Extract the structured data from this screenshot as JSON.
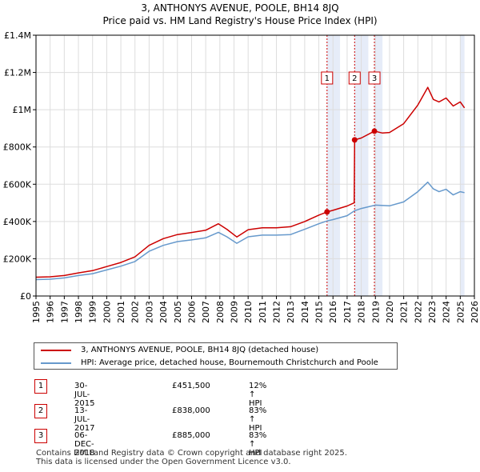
{
  "title_line1": "3, ANTHONYS AVENUE, POOLE, BH14 8JQ",
  "title_line2": "Price paid vs. HM Land Registry's House Price Index (HPI)",
  "colors": {
    "property": "#cc0000",
    "hpi": "#6699cc",
    "shade": "#e6ecf8",
    "grid": "#dddddd",
    "marker_border": "#cc0000"
  },
  "legend": {
    "property_label": "3, ANTHONYS AVENUE, POOLE, BH14 8JQ (detached house)",
    "hpi_label": "HPI: Average price, detached house, Bournemouth Christchurch and Poole"
  },
  "transactions": [
    {
      "num": "1",
      "date": "30-JUL-2015",
      "price": "£451,500",
      "hpi": "12% ↑ HPI"
    },
    {
      "num": "2",
      "date": "13-JUL-2017",
      "price": "£838,000",
      "hpi": "83% ↑ HPI"
    },
    {
      "num": "3",
      "date": "06-DEC-2018",
      "price": "£885,000",
      "hpi": "83% ↑ HPI"
    }
  ],
  "footer_line1": "Contains HM Land Registry data © Crown copyright and database right 2025.",
  "footer_line2": "This data is licensed under the Open Government Licence v3.0.",
  "chart_data": {
    "type": "line",
    "title": "3, ANTHONYS AVENUE, POOLE, BH14 8JQ",
    "subtitle": "Price paid vs. HM Land Registry's House Price Index (HPI)",
    "xlim": [
      1995,
      2026
    ],
    "ylim": [
      0,
      1400000
    ],
    "x_ticks": [
      "1995",
      "1996",
      "1997",
      "1998",
      "1999",
      "2000",
      "2001",
      "2002",
      "2003",
      "2004",
      "2005",
      "2006",
      "2007",
      "2008",
      "2009",
      "2010",
      "2011",
      "2012",
      "2013",
      "2014",
      "2015",
      "2016",
      "2017",
      "2018",
      "2019",
      "2020",
      "2021",
      "2022",
      "2023",
      "2024",
      "2025",
      "2026"
    ],
    "y_ticks": [
      {
        "value": 0,
        "label": "£0"
      },
      {
        "value": 200000,
        "label": "£200K"
      },
      {
        "value": 400000,
        "label": "£400K"
      },
      {
        "value": 600000,
        "label": "£600K"
      },
      {
        "value": 800000,
        "label": "£800K"
      },
      {
        "value": 1000000,
        "label": "£1M"
      },
      {
        "value": 1200000,
        "label": "£1.2M"
      },
      {
        "value": 1400000,
        "label": "£1.4M"
      }
    ],
    "grid": true,
    "legend_position": "bottom",
    "shaded_ranges": [
      [
        2015.58,
        2016.5
      ],
      [
        2017.53,
        2018.5
      ],
      [
        2018.93,
        2019.5
      ],
      [
        2025.0,
        2025.3
      ]
    ],
    "events": [
      {
        "label": "1",
        "x": 2015.58
      },
      {
        "label": "2",
        "x": 2017.53
      },
      {
        "label": "3",
        "x": 2018.93
      }
    ],
    "sales": [
      {
        "x": 2015.58,
        "y": 451500
      },
      {
        "x": 2017.53,
        "y": 838000
      },
      {
        "x": 2018.93,
        "y": 885000
      }
    ],
    "series": [
      {
        "name": "HPI: Average price, detached house, Bournemouth Christchurch and Poole",
        "x": [
          1995,
          1996,
          1997,
          1998,
          1999,
          2000,
          2001,
          2002,
          2003,
          2004,
          2005,
          2006,
          2007,
          2007.9,
          2008.5,
          2009.2,
          2010,
          2011,
          2012,
          2013,
          2014,
          2015,
          2015.58,
          2016,
          2017,
          2017.53,
          2018,
          2019,
          2020,
          2021,
          2022,
          2022.7,
          2023.1,
          2023.5,
          2024,
          2024.5,
          2025,
          2025.3
        ],
        "values": [
          88000,
          90000,
          97000,
          110000,
          120000,
          140000,
          160000,
          185000,
          240000,
          272000,
          292000,
          301000,
          312000,
          342000,
          318000,
          283000,
          318000,
          327000,
          327000,
          330000,
          358000,
          388000,
          403000,
          410000,
          431000,
          458000,
          470000,
          488000,
          484000,
          505000,
          560000,
          611000,
          575000,
          560000,
          573000,
          543000,
          560000,
          555000
        ]
      },
      {
        "name": "3, ANTHONYS AVENUE, POOLE, BH14 8JQ (detached house)",
        "x": [
          1995,
          1996,
          1997,
          1998,
          1999,
          2000,
          2001,
          2002,
          2003,
          2004,
          2005,
          2006,
          2007,
          2007.9,
          2008.5,
          2009.2,
          2010,
          2011,
          2012,
          2013,
          2014,
          2015,
          2015.58,
          2016,
          2017,
          2017.5,
          2017.53,
          2018,
          2018.93,
          2019.5,
          2020,
          2021,
          2022,
          2022.7,
          2023.1,
          2023.5,
          2024,
          2024.5,
          2025,
          2025.3
        ],
        "values": [
          101000,
          103000,
          110000,
          124000,
          136000,
          158000,
          180000,
          210000,
          272000,
          308000,
          330000,
          341000,
          353000,
          388000,
          358000,
          317000,
          356000,
          366000,
          366000,
          372000,
          400000,
          434000,
          451500,
          460000,
          483000,
          500000,
          838000,
          848000,
          885000,
          875000,
          878000,
          925000,
          1025000,
          1120000,
          1055000,
          1042000,
          1063000,
          1020000,
          1042000,
          1010000
        ]
      }
    ]
  }
}
